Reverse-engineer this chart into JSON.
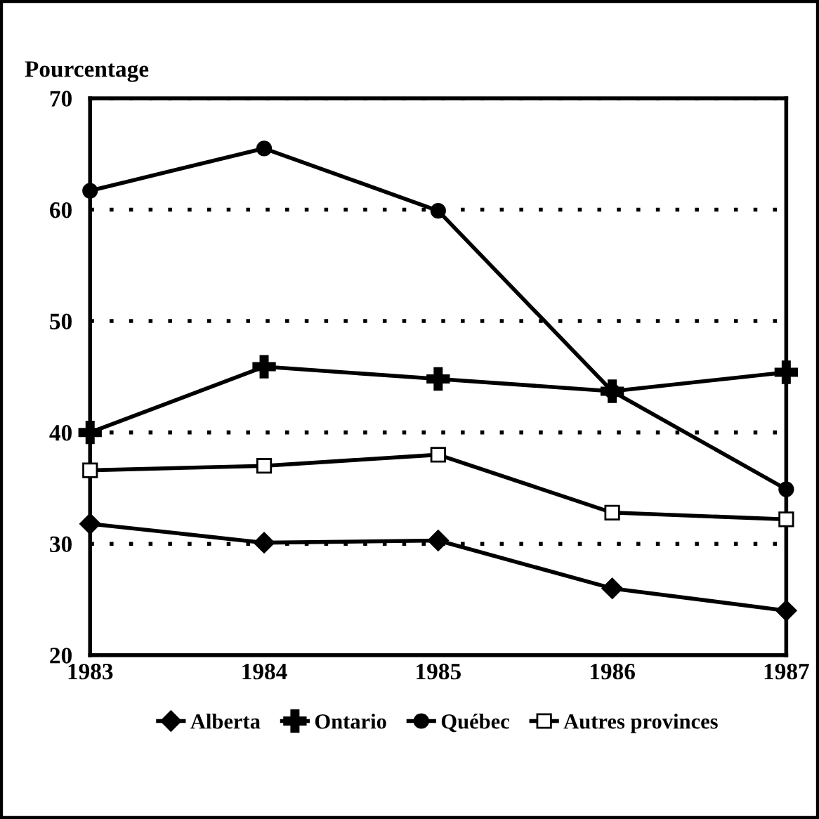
{
  "chart_data": {
    "type": "line",
    "ylabel": "Pourcentage",
    "x": [
      1983,
      1984,
      1985,
      1986,
      1987
    ],
    "xlim": [
      1983,
      1987
    ],
    "xticks": [
      1983,
      1984,
      1985,
      1986,
      1987
    ],
    "ylim": [
      20,
      70
    ],
    "yticks": [
      20,
      30,
      40,
      50,
      60,
      70
    ],
    "grid": "y",
    "legend": "bottom",
    "line_style": "solid",
    "series": [
      {
        "name": "Alberta",
        "color": "#000000",
        "marker": "diamond",
        "values": [
          31.8,
          30.1,
          30.3,
          26.0,
          24.0
        ]
      },
      {
        "name": "Ontario",
        "color": "#000000",
        "marker": "cross",
        "values": [
          40.0,
          45.9,
          44.8,
          43.7,
          45.4
        ]
      },
      {
        "name": "Québec",
        "color": "#000000",
        "marker": "circle",
        "values": [
          61.7,
          65.5,
          59.9,
          43.7,
          34.9
        ]
      },
      {
        "name": "Autres provinces",
        "color": "#000000",
        "marker": "square",
        "values": [
          36.6,
          37.0,
          38.0,
          32.8,
          32.2
        ]
      }
    ]
  }
}
